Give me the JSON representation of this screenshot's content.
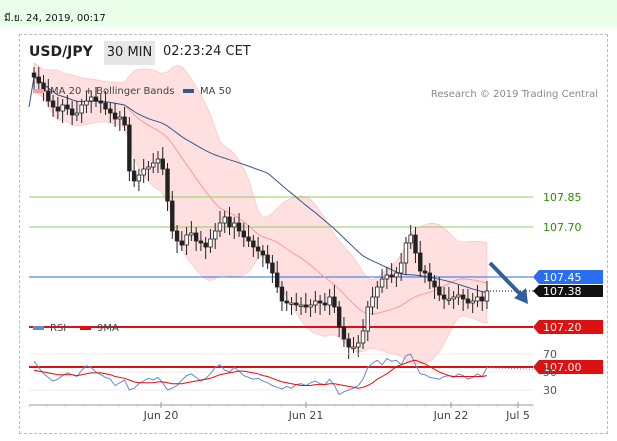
{
  "timestamp": "มี.ย. 24, 2019, 00:17",
  "header": {
    "pair": "USD/JPY",
    "timeframe": "30 MIN",
    "clock": "02:23:24 CET"
  },
  "copyright": "Research © 2019 Trading Central",
  "colors": {
    "bollinger": "#ff9999",
    "bollinger_fill": "#ffe0e0",
    "ma50": "#35578a",
    "resistance": "#8fcc66",
    "resistance_text": "#2e8b00",
    "pivot": "#2a6ef0",
    "support": "#dd1111",
    "arrow": "#2f5f9e",
    "rsi": "#6688cc",
    "rsi_ma": "#dd1111"
  },
  "chart_data": [
    {
      "type": "candlestick",
      "legend": [
        {
          "name": "MA 20 + Bollinger Bands",
          "color": "#ff9999"
        },
        {
          "name": "MA 50",
          "color": "#35578a"
        }
      ],
      "x_ticks": [
        "Jun 20",
        "Jun 21",
        "Jun 22",
        "Jul 5"
      ],
      "levels": [
        {
          "value": 107.85,
          "label": "107.85",
          "kind": "resistance"
        },
        {
          "value": 107.7,
          "label": "107.70",
          "kind": "resistance"
        },
        {
          "value": 107.45,
          "label": "107.45",
          "kind": "pivot"
        },
        {
          "value": 107.2,
          "label": "107.20",
          "kind": "support"
        },
        {
          "value": 107.0,
          "label": "107.00",
          "kind": "support"
        }
      ],
      "last_price": "107.38",
      "ylim": [
        106.95,
        108.62
      ],
      "close_series": [
        108.45,
        108.42,
        108.38,
        108.33,
        108.3,
        108.28,
        108.31,
        108.29,
        108.26,
        108.27,
        108.31,
        108.33,
        108.35,
        108.33,
        108.32,
        108.29,
        108.27,
        108.24,
        108.25,
        108.21,
        107.98,
        107.93,
        107.96,
        107.99,
        108.0,
        108.02,
        108.04,
        107.99,
        107.83,
        107.68,
        107.63,
        107.61,
        107.66,
        107.67,
        107.63,
        107.62,
        107.6,
        107.64,
        107.68,
        107.72,
        107.75,
        107.7,
        107.72,
        107.68,
        107.65,
        107.63,
        107.6,
        107.58,
        107.56,
        107.52,
        107.47,
        107.4,
        107.33,
        107.32,
        107.32,
        107.31,
        107.31,
        107.3,
        107.31,
        107.33,
        107.32,
        107.31,
        107.35,
        107.3,
        107.2,
        107.14,
        107.1,
        107.1,
        107.12,
        107.18,
        107.3,
        107.35,
        107.4,
        107.44,
        107.46,
        107.45,
        107.47,
        107.52,
        107.62,
        107.66,
        107.57,
        107.48,
        107.47,
        107.43,
        107.4,
        107.36,
        107.34,
        107.34,
        107.35,
        107.36,
        107.34,
        107.32,
        107.33,
        107.35,
        107.33,
        107.38
      ]
    },
    {
      "type": "line",
      "legend": [
        {
          "name": "RSI",
          "color": "#6688cc"
        },
        {
          "name": "9MA",
          "color": "#dd1111"
        }
      ],
      "y_ticks": [
        70,
        50,
        30
      ],
      "ylim": [
        20,
        80
      ],
      "rsi": [
        62,
        55,
        48,
        44,
        40,
        42,
        46,
        49,
        47,
        45,
        52,
        57,
        55,
        50,
        47,
        44,
        42,
        35,
        38,
        41,
        30,
        32,
        37,
        40,
        43,
        41,
        44,
        38,
        30,
        32,
        35,
        41,
        46,
        48,
        44,
        40,
        43,
        48,
        55,
        58,
        52,
        50,
        55,
        51,
        46,
        44,
        42,
        43,
        40,
        38,
        35,
        33,
        31,
        34,
        32,
        36,
        37,
        35,
        38,
        40,
        37,
        36,
        42,
        35,
        25,
        28,
        30,
        32,
        35,
        42,
        55,
        60,
        63,
        58,
        65,
        62,
        63,
        58,
        68,
        70,
        58,
        48,
        47,
        44,
        43,
        42,
        45,
        46,
        44,
        48,
        46,
        42,
        44,
        48,
        45,
        55
      ],
      "rsi_ma": [
        52,
        51,
        50,
        49,
        48,
        47,
        47,
        47,
        47,
        46,
        47,
        48,
        49,
        49,
        49,
        48,
        47,
        45,
        44,
        43,
        41,
        39,
        38,
        38,
        38,
        38,
        39,
        39,
        38,
        37,
        37,
        37,
        38,
        39,
        40,
        41,
        42,
        43,
        45,
        47,
        48,
        49,
        50,
        51,
        51,
        50,
        49,
        48,
        46,
        45,
        43,
        41,
        39,
        38,
        37,
        36,
        35,
        35,
        35,
        36,
        36,
        36,
        37,
        37,
        36,
        35,
        34,
        33,
        32,
        33,
        35,
        38,
        42,
        45,
        48,
        52,
        56,
        58,
        60,
        62,
        63,
        61,
        59,
        56,
        53,
        50,
        48,
        46,
        45,
        45,
        45,
        45,
        45,
        45,
        45,
        46
      ]
    }
  ]
}
